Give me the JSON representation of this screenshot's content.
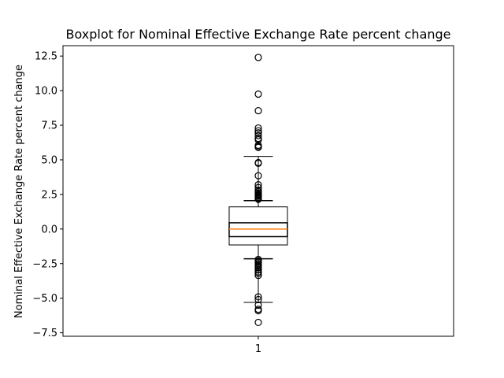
{
  "chart_data": {
    "type": "box",
    "title": "Boxplot for Nominal Effective Exchange Rate percent change",
    "xlabel": "",
    "ylabel": "Nominal Effective Exchange Rate percent change",
    "categories": [
      "1"
    ],
    "ylim": [
      -7.75,
      13.25
    ],
    "yticks": [
      -7.5,
      -5.0,
      -2.5,
      0.0,
      2.5,
      5.0,
      7.5,
      10.0,
      12.5
    ],
    "ytick_labels": [
      "−7.5",
      "−5.0",
      "−2.5",
      "0.0",
      "2.5",
      "5.0",
      "7.5",
      "10.0",
      "12.5"
    ],
    "grid": false,
    "boxes": [
      {
        "label": "1",
        "q1": -1.15,
        "median": 0.0,
        "q3": 1.6,
        "whisker_low": -5.3,
        "whisker_high": 5.25,
        "inner_box_low": -0.55,
        "inner_box_high": 0.45,
        "inner_caps": [
          -2.15,
          2.05
        ],
        "outliers": [
          12.4,
          9.75,
          8.55,
          7.3,
          7.1,
          6.95,
          6.75,
          6.55,
          6.45,
          6.05,
          5.95,
          5.9,
          4.8,
          4.75,
          3.85,
          3.2,
          3.0,
          2.8,
          2.7,
          2.6,
          2.5,
          2.45,
          2.4,
          2.3,
          2.25,
          2.2,
          2.15,
          -2.2,
          -2.3,
          -2.4,
          -2.5,
          -2.6,
          -2.7,
          -2.8,
          -2.95,
          -3.1,
          -3.2,
          -3.35,
          -4.9,
          -5.1,
          -5.5,
          -5.8,
          -5.9,
          -6.75
        ]
      }
    ],
    "colors": {
      "box": "#000000",
      "median": "#ff7f0e",
      "outlier": "#000000"
    }
  }
}
